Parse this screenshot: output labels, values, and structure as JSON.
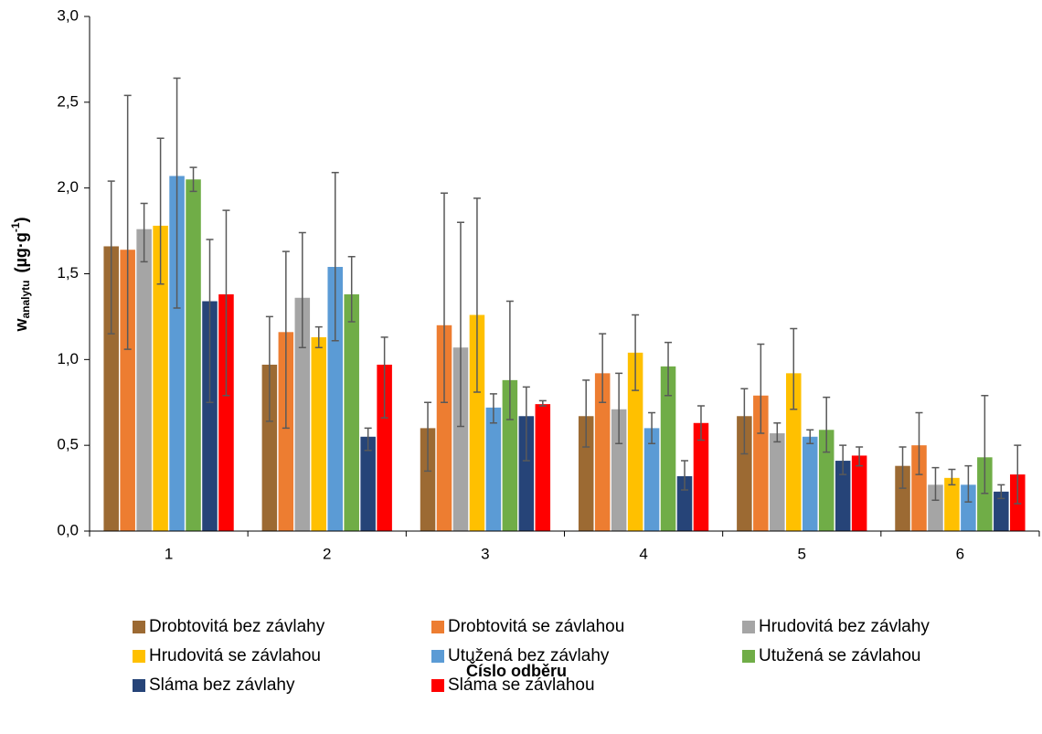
{
  "chart_data": {
    "type": "bar",
    "x_label": "Číslo odběru",
    "y_label": {
      "text": "w",
      "subscript": "analytu",
      "unit": "(µg·g",
      "unit_superscript": "-1",
      "unit_close": ")"
    },
    "categories": [
      "1",
      "2",
      "3",
      "4",
      "5",
      "6"
    ],
    "ylim": [
      0,
      3
    ],
    "yticks": [
      {
        "value": 0,
        "label": "0,0"
      },
      {
        "value": 0.5,
        "label": "0,5"
      },
      {
        "value": 1,
        "label": "1,0"
      },
      {
        "value": 1.5,
        "label": "1,5"
      },
      {
        "value": 2,
        "label": "2,0"
      },
      {
        "value": 2.5,
        "label": "2,5"
      },
      {
        "value": 3,
        "label": "3,0"
      }
    ],
    "grid": false,
    "legend_position": "bottom",
    "series": [
      {
        "name": "Drobtovitá bez závlahy",
        "color": "#9c6a33",
        "values": [
          1.66,
          0.97,
          0.6,
          0.67,
          0.67,
          0.38
        ],
        "errors_plus": [
          0.38,
          0.28,
          0.15,
          0.21,
          0.16,
          0.11
        ],
        "errors_minus": [
          0.51,
          0.33,
          0.25,
          0.18,
          0.22,
          0.13
        ]
      },
      {
        "name": "Drobtovitá se závlahou",
        "color": "#ed7d31",
        "values": [
          1.64,
          1.16,
          1.2,
          0.92,
          0.79,
          0.5
        ],
        "errors_plus": [
          0.9,
          0.47,
          0.77,
          0.23,
          0.3,
          0.19
        ],
        "errors_minus": [
          0.58,
          0.56,
          0.45,
          0.17,
          0.22,
          0.17
        ]
      },
      {
        "name": "Hrudovitá bez závlahy",
        "color": "#a5a5a5",
        "values": [
          1.76,
          1.36,
          1.07,
          0.71,
          0.57,
          0.27
        ],
        "errors_plus": [
          0.15,
          0.38,
          0.73,
          0.21,
          0.06,
          0.1
        ],
        "errors_minus": [
          0.19,
          0.29,
          0.46,
          0.2,
          0.05,
          0.09
        ]
      },
      {
        "name": "Hrudovitá se závlahou",
        "color": "#ffc000",
        "values": [
          1.78,
          1.13,
          1.26,
          1.04,
          0.92,
          0.31
        ],
        "errors_plus": [
          0.51,
          0.06,
          0.68,
          0.22,
          0.26,
          0.05
        ],
        "errors_minus": [
          0.34,
          0.06,
          0.45,
          0.22,
          0.21,
          0.04
        ]
      },
      {
        "name": "Utužená bez závlahy",
        "color": "#5b9bd5",
        "values": [
          2.07,
          1.54,
          0.72,
          0.6,
          0.55,
          0.27
        ],
        "errors_plus": [
          0.57,
          0.55,
          0.08,
          0.09,
          0.04,
          0.11
        ],
        "errors_minus": [
          0.77,
          0.43,
          0.09,
          0.09,
          0.04,
          0.1
        ]
      },
      {
        "name": "Utužená se závlahou",
        "color": "#70ad47",
        "values": [
          2.05,
          1.38,
          0.88,
          0.96,
          0.59,
          0.43
        ],
        "errors_plus": [
          0.07,
          0.22,
          0.46,
          0.14,
          0.19,
          0.36
        ],
        "errors_minus": [
          0.07,
          0.16,
          0.23,
          0.17,
          0.13,
          0.21
        ]
      },
      {
        "name": "Sláma bez závlahy",
        "color": "#264478",
        "values": [
          1.34,
          0.55,
          0.67,
          0.32,
          0.41,
          0.23
        ],
        "errors_plus": [
          0.36,
          0.05,
          0.17,
          0.09,
          0.09,
          0.04
        ],
        "errors_minus": [
          0.59,
          0.08,
          0.26,
          0.08,
          0.08,
          0.04
        ]
      },
      {
        "name": "Sláma se závlahou",
        "color": "#ff0000",
        "values": [
          1.38,
          0.97,
          0.74,
          0.63,
          0.44,
          0.33
        ],
        "errors_plus": [
          0.49,
          0.16,
          0.02,
          0.1,
          0.05,
          0.17
        ],
        "errors_minus": [
          0.59,
          0.31,
          0.01,
          0.1,
          0.06,
          0.17
        ]
      }
    ]
  }
}
